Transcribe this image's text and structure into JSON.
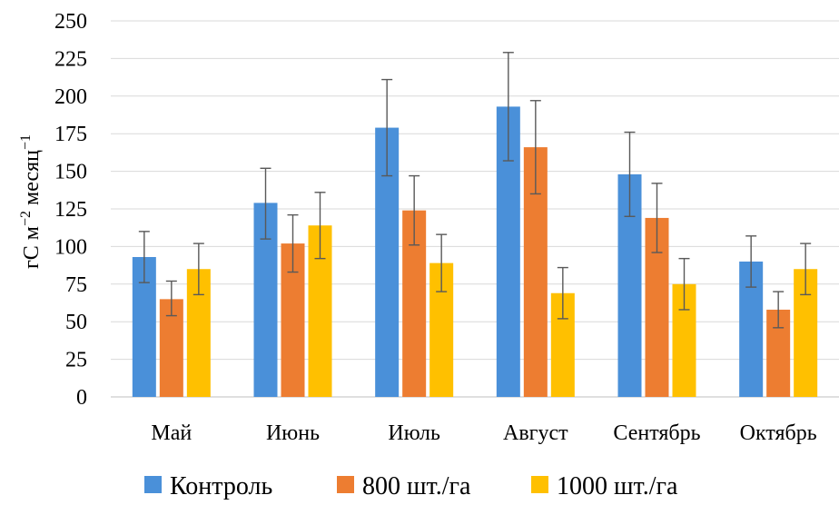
{
  "chart_data": {
    "type": "bar",
    "ylabel_parts": [
      "гС м",
      "−2",
      " месяц",
      "−1"
    ],
    "ylim": [
      0,
      250
    ],
    "yticks": [
      "0",
      "25",
      "50",
      "75",
      "100",
      "125",
      "150",
      "175",
      "200",
      "225",
      "250"
    ],
    "ytick_values": [
      0,
      25,
      50,
      75,
      100,
      125,
      150,
      175,
      200,
      225,
      250
    ],
    "grid": true,
    "legend_position": "bottom",
    "categories": [
      "Май",
      "Июнь",
      "Июль",
      "Август",
      "Сентябрь",
      "Октябрь"
    ],
    "series": [
      {
        "name": "Контроль",
        "color": "#4A90D9",
        "values": [
          93,
          129,
          179,
          193,
          148,
          90
        ],
        "err_low": [
          76,
          105,
          147,
          157,
          120,
          73
        ],
        "err_high": [
          110,
          152,
          211,
          229,
          176,
          107
        ]
      },
      {
        "name": "800 шт./га",
        "color": "#ED7D31",
        "values": [
          65,
          102,
          124,
          166,
          119,
          58
        ],
        "err_low": [
          54,
          83,
          101,
          135,
          96,
          46
        ],
        "err_high": [
          77,
          121,
          147,
          197,
          142,
          70
        ]
      },
      {
        "name": "1000 шт./га",
        "color": "#FFC000",
        "values": [
          85,
          114,
          89,
          69,
          75,
          85
        ],
        "err_low": [
          68,
          92,
          70,
          52,
          58,
          68
        ],
        "err_high": [
          102,
          136,
          108,
          86,
          92,
          102
        ]
      }
    ]
  }
}
